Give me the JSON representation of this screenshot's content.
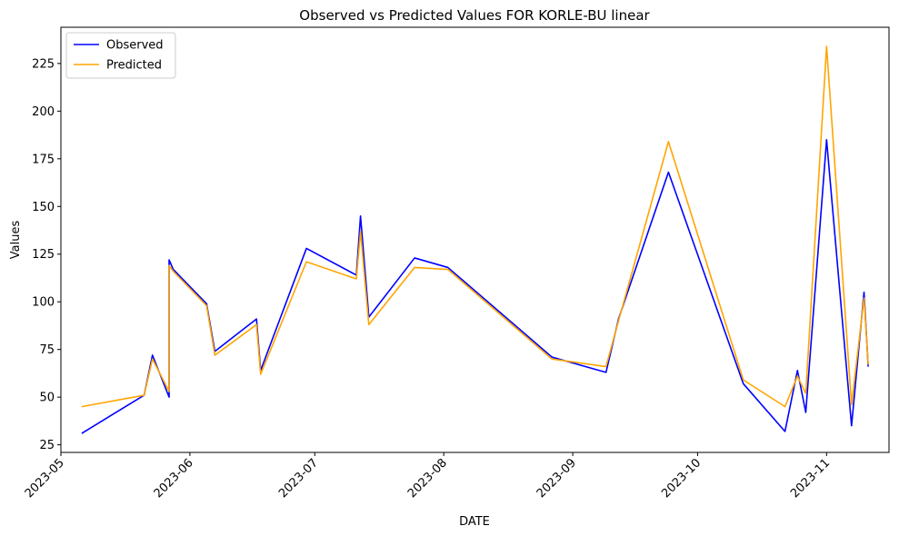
{
  "chart_data": {
    "type": "line",
    "title": "Observed vs Predicted Values FOR KORLE-BU  linear",
    "xlabel": "DATE",
    "ylabel": "Values",
    "xlim": [
      "2023-05-01",
      "2023-11-16"
    ],
    "ylim": [
      21.0,
      244.0
    ],
    "x_ticks": [
      "2023-05",
      "2023-06",
      "2023-07",
      "2023-08",
      "2023-09",
      "2023-10",
      "2023-11"
    ],
    "y_ticks": [
      25,
      50,
      75,
      100,
      125,
      150,
      175,
      200,
      225
    ],
    "grid": false,
    "legend_position": "top-left",
    "series": [
      {
        "name": "Observed",
        "color": "#0000ff",
        "points": [
          [
            "2023-05-06",
            31
          ],
          [
            "2023-05-21",
            51
          ],
          [
            "2023-05-23",
            72
          ],
          [
            "2023-05-27",
            50
          ],
          [
            "2023-05-27",
            122
          ],
          [
            "2023-05-28",
            117
          ],
          [
            "2023-06-05",
            99
          ],
          [
            "2023-06-07",
            74
          ],
          [
            "2023-06-17",
            91
          ],
          [
            "2023-06-18",
            64
          ],
          [
            "2023-06-29",
            128
          ],
          [
            "2023-07-11",
            114
          ],
          [
            "2023-07-12",
            145
          ],
          [
            "2023-07-14",
            92
          ],
          [
            "2023-07-25",
            123
          ],
          [
            "2023-08-02",
            118
          ],
          [
            "2023-08-27",
            71
          ],
          [
            "2023-09-09",
            63
          ],
          [
            "2023-09-12",
            91
          ],
          [
            "2023-09-24",
            168
          ],
          [
            "2023-10-12",
            57
          ],
          [
            "2023-10-22",
            32
          ],
          [
            "2023-10-25",
            64
          ],
          [
            "2023-10-27",
            42
          ],
          [
            "2023-11-01",
            185
          ],
          [
            "2023-11-07",
            35
          ],
          [
            "2023-11-10",
            105
          ],
          [
            "2023-11-11",
            66
          ]
        ]
      },
      {
        "name": "Predicted",
        "color": "#ffa500",
        "points": [
          [
            "2023-05-06",
            45
          ],
          [
            "2023-05-21",
            51
          ],
          [
            "2023-05-23",
            70
          ],
          [
            "2023-05-27",
            53
          ],
          [
            "2023-05-27",
            119
          ],
          [
            "2023-05-28",
            116
          ],
          [
            "2023-06-05",
            98
          ],
          [
            "2023-06-07",
            72
          ],
          [
            "2023-06-17",
            88
          ],
          [
            "2023-06-18",
            62
          ],
          [
            "2023-06-29",
            121
          ],
          [
            "2023-07-11",
            112
          ],
          [
            "2023-07-12",
            137
          ],
          [
            "2023-07-14",
            88
          ],
          [
            "2023-07-25",
            118
          ],
          [
            "2023-08-02",
            117
          ],
          [
            "2023-08-27",
            70
          ],
          [
            "2023-09-09",
            66
          ],
          [
            "2023-09-12",
            90
          ],
          [
            "2023-09-24",
            184
          ],
          [
            "2023-10-12",
            59
          ],
          [
            "2023-10-22",
            45
          ],
          [
            "2023-10-25",
            61
          ],
          [
            "2023-10-27",
            52
          ],
          [
            "2023-11-01",
            234
          ],
          [
            "2023-11-07",
            46
          ],
          [
            "2023-11-10",
            102
          ],
          [
            "2023-11-11",
            67
          ]
        ]
      }
    ]
  }
}
